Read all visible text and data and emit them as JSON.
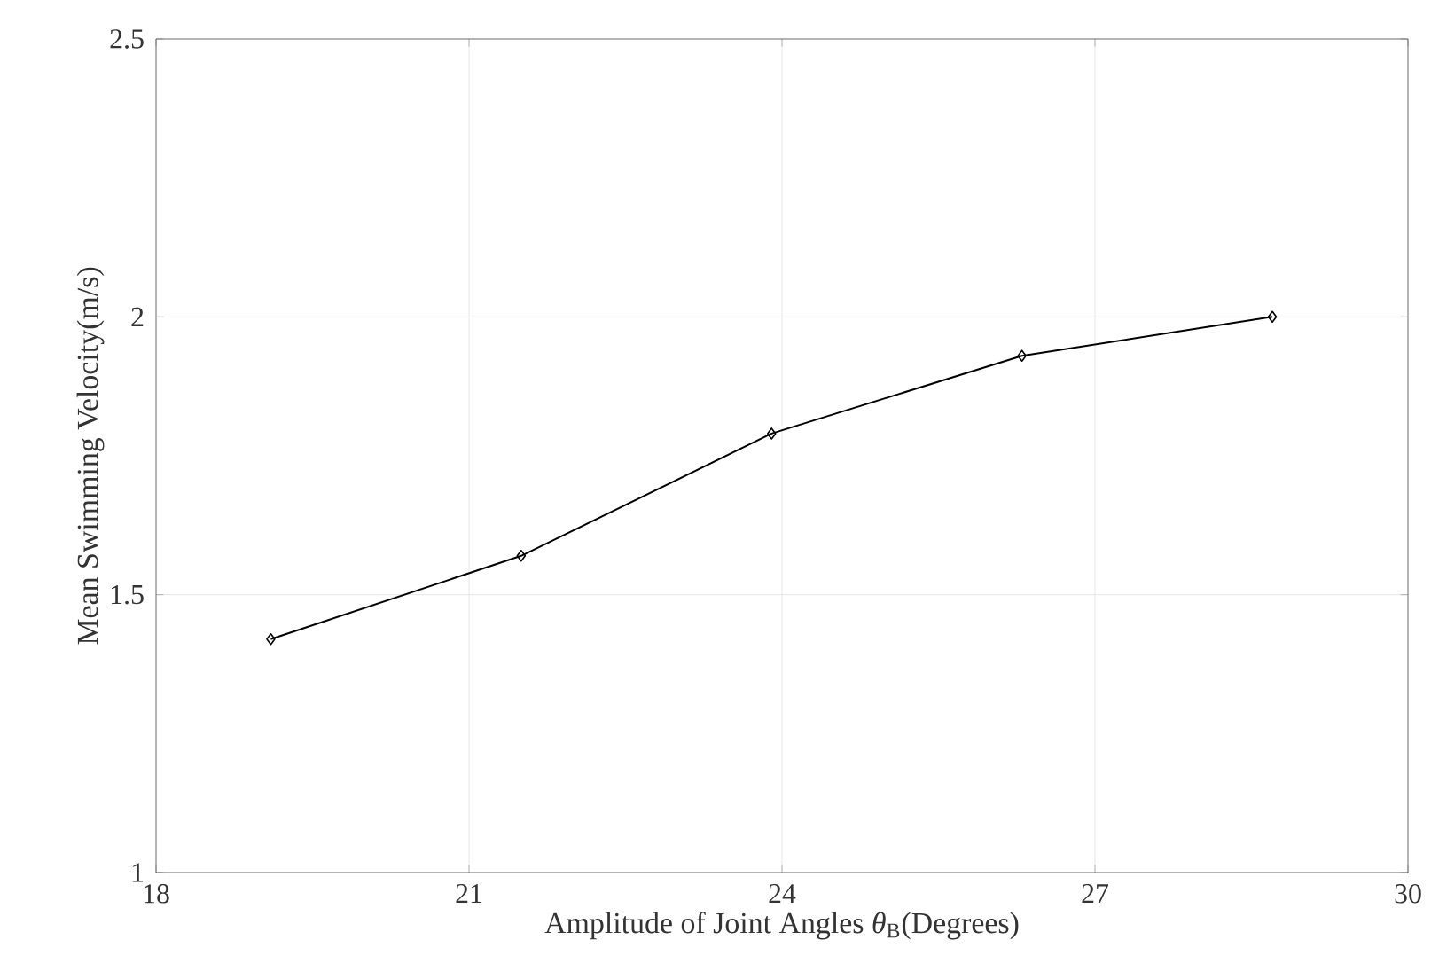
{
  "chart_data": {
    "type": "line",
    "xlabel": "Amplitude of Joint Angles *θ*$_{B}$(Degrees)",
    "ylabel": "Mean Swimming Velocity(m/s)",
    "x": [
      19.1,
      21.5,
      23.9,
      26.3,
      28.7
    ],
    "series": [
      {
        "color": "#000000",
        "values": [
          1.42,
          1.57,
          1.79,
          1.93,
          2.0
        ]
      }
    ],
    "xlim": [
      18,
      30
    ],
    "ylim": [
      1,
      2.5
    ],
    "xticks": [
      18,
      21,
      24,
      27,
      30
    ],
    "yticks": [
      1,
      1.5,
      2,
      2.5
    ],
    "grid": true,
    "marker": "diamond",
    "line_style": "solid"
  }
}
